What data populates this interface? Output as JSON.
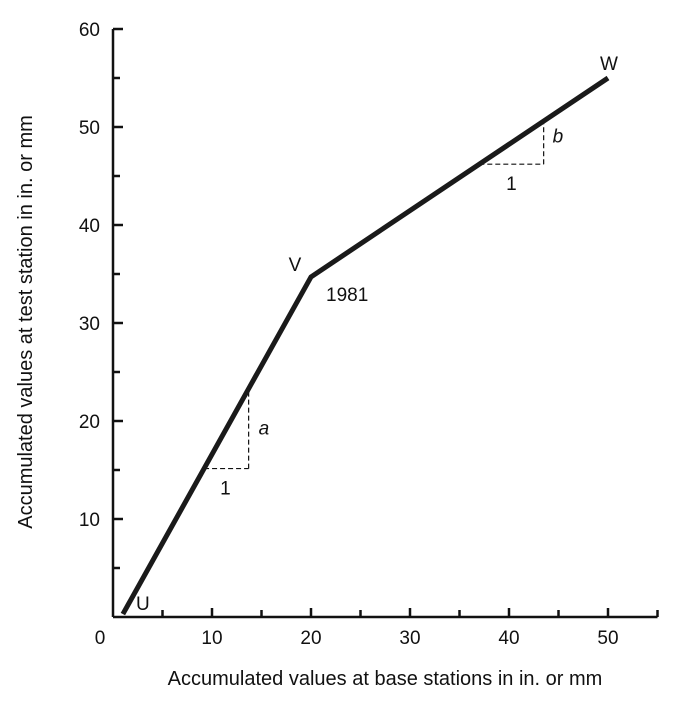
{
  "chart_data": {
    "type": "line",
    "xlabel": "Accumulated values at base stations in in. or mm",
    "ylabel": "Accumulated values at test station in in. or mm",
    "xlim": [
      0,
      55
    ],
    "ylim": [
      0,
      60
    ],
    "x_ticks": [
      0,
      10,
      20,
      30,
      40,
      50
    ],
    "y_ticks": [
      10,
      20,
      30,
      40,
      50,
      60
    ],
    "series": [
      {
        "x": [
          1,
          20,
          50
        ],
        "y": [
          0.3,
          34.7,
          55
        ]
      }
    ],
    "point_labels": [
      {
        "text": "U",
        "x": 1,
        "y": 0.3
      },
      {
        "text": "V",
        "x": 20,
        "y": 34.7
      },
      {
        "text": "W",
        "x": 50,
        "y": 55
      }
    ],
    "annotations": {
      "year": "1981",
      "slope_a": {
        "run_label": "1",
        "rise_label": "a",
        "x0": 9.2,
        "x1": 13.7
      },
      "slope_b": {
        "run_label": "1",
        "rise_label": "b",
        "x0": 37.0,
        "x1": 43.5
      }
    },
    "grid": false
  }
}
